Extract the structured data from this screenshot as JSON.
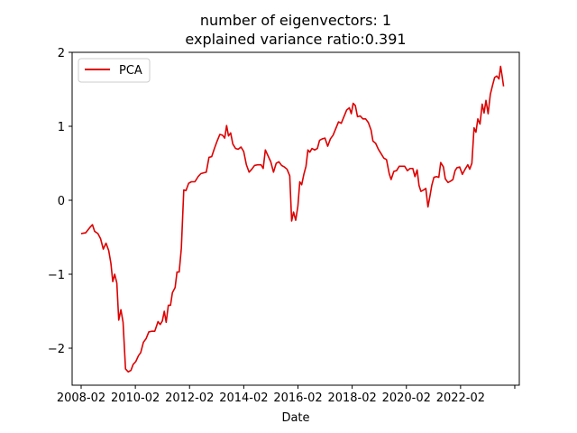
{
  "chart_data": {
    "type": "line",
    "title": [
      "number of eigenvectors: 1",
      "explained variance ratio:0.391"
    ],
    "xlabel": "Date",
    "ylabel": "",
    "xlim": [
      2007.75,
      2024.25
    ],
    "ylim": [
      -2.5,
      2.0
    ],
    "x_ticks": [
      {
        "value": 2008.083,
        "label": "2008-02"
      },
      {
        "value": 2010.083,
        "label": "2010-02"
      },
      {
        "value": 2012.083,
        "label": "2012-02"
      },
      {
        "value": 2014.083,
        "label": "2014-02"
      },
      {
        "value": 2016.083,
        "label": "2016-02"
      },
      {
        "value": 2018.083,
        "label": "2018-02"
      },
      {
        "value": 2020.083,
        "label": "2020-02"
      },
      {
        "value": 2022.083,
        "label": "2022-02"
      },
      {
        "value": 2024.083,
        "label": ""
      }
    ],
    "y_ticks": [
      {
        "value": -2,
        "label": "−2"
      },
      {
        "value": -1,
        "label": "−1"
      },
      {
        "value": 0,
        "label": "0"
      },
      {
        "value": 1,
        "label": "1"
      },
      {
        "value": 2,
        "label": "2"
      }
    ],
    "grid": false,
    "legend_position": "top-left",
    "series": [
      {
        "name": "PCA",
        "color": "#dd0000",
        "points": [
          [
            2008.08,
            -0.45
          ],
          [
            2008.25,
            -0.44
          ],
          [
            2008.4,
            -0.37
          ],
          [
            2008.5,
            -0.33
          ],
          [
            2008.58,
            -0.42
          ],
          [
            2008.7,
            -0.45
          ],
          [
            2008.8,
            -0.52
          ],
          [
            2008.9,
            -0.66
          ],
          [
            2009.0,
            -0.58
          ],
          [
            2009.1,
            -0.68
          ],
          [
            2009.18,
            -0.85
          ],
          [
            2009.25,
            -1.1
          ],
          [
            2009.32,
            -1.0
          ],
          [
            2009.4,
            -1.12
          ],
          [
            2009.47,
            -1.62
          ],
          [
            2009.55,
            -1.48
          ],
          [
            2009.63,
            -1.65
          ],
          [
            2009.72,
            -2.28
          ],
          [
            2009.82,
            -2.32
          ],
          [
            2009.92,
            -2.3
          ],
          [
            2010.0,
            -2.22
          ],
          [
            2010.1,
            -2.18
          ],
          [
            2010.2,
            -2.1
          ],
          [
            2010.28,
            -2.06
          ],
          [
            2010.38,
            -1.92
          ],
          [
            2010.48,
            -1.87
          ],
          [
            2010.58,
            -1.78
          ],
          [
            2010.7,
            -1.77
          ],
          [
            2010.8,
            -1.77
          ],
          [
            2010.92,
            -1.64
          ],
          [
            2011.0,
            -1.68
          ],
          [
            2011.08,
            -1.63
          ],
          [
            2011.15,
            -1.5
          ],
          [
            2011.22,
            -1.65
          ],
          [
            2011.3,
            -1.42
          ],
          [
            2011.38,
            -1.42
          ],
          [
            2011.45,
            -1.25
          ],
          [
            2011.55,
            -1.18
          ],
          [
            2011.62,
            -0.97
          ],
          [
            2011.7,
            -0.97
          ],
          [
            2011.78,
            -0.65
          ],
          [
            2011.87,
            0.14
          ],
          [
            2011.95,
            0.13
          ],
          [
            2012.05,
            0.23
          ],
          [
            2012.15,
            0.25
          ],
          [
            2012.28,
            0.25
          ],
          [
            2012.4,
            0.32
          ],
          [
            2012.5,
            0.36
          ],
          [
            2012.6,
            0.37
          ],
          [
            2012.7,
            0.38
          ],
          [
            2012.8,
            0.58
          ],
          [
            2012.9,
            0.59
          ],
          [
            2013.0,
            0.7
          ],
          [
            2013.1,
            0.8
          ],
          [
            2013.2,
            0.89
          ],
          [
            2013.3,
            0.88
          ],
          [
            2013.38,
            0.84
          ],
          [
            2013.45,
            1.01
          ],
          [
            2013.52,
            0.87
          ],
          [
            2013.6,
            0.91
          ],
          [
            2013.68,
            0.76
          ],
          [
            2013.78,
            0.7
          ],
          [
            2013.88,
            0.69
          ],
          [
            2013.98,
            0.72
          ],
          [
            2014.08,
            0.66
          ],
          [
            2014.18,
            0.48
          ],
          [
            2014.28,
            0.38
          ],
          [
            2014.38,
            0.42
          ],
          [
            2014.48,
            0.47
          ],
          [
            2014.6,
            0.48
          ],
          [
            2014.72,
            0.48
          ],
          [
            2014.8,
            0.43
          ],
          [
            2014.88,
            0.68
          ],
          [
            2014.98,
            0.6
          ],
          [
            2015.08,
            0.52
          ],
          [
            2015.18,
            0.38
          ],
          [
            2015.28,
            0.5
          ],
          [
            2015.38,
            0.52
          ],
          [
            2015.48,
            0.47
          ],
          [
            2015.58,
            0.45
          ],
          [
            2015.68,
            0.42
          ],
          [
            2015.78,
            0.33
          ],
          [
            2015.85,
            -0.28
          ],
          [
            2015.92,
            -0.16
          ],
          [
            2016.0,
            -0.27
          ],
          [
            2016.08,
            -0.08
          ],
          [
            2016.15,
            0.25
          ],
          [
            2016.22,
            0.21
          ],
          [
            2016.3,
            0.35
          ],
          [
            2016.38,
            0.46
          ],
          [
            2016.45,
            0.68
          ],
          [
            2016.52,
            0.65
          ],
          [
            2016.6,
            0.7
          ],
          [
            2016.7,
            0.68
          ],
          [
            2016.8,
            0.7
          ],
          [
            2016.88,
            0.81
          ],
          [
            2016.98,
            0.83
          ],
          [
            2017.08,
            0.84
          ],
          [
            2017.18,
            0.73
          ],
          [
            2017.28,
            0.83
          ],
          [
            2017.38,
            0.88
          ],
          [
            2017.48,
            0.97
          ],
          [
            2017.58,
            1.06
          ],
          [
            2017.68,
            1.04
          ],
          [
            2017.78,
            1.13
          ],
          [
            2017.88,
            1.22
          ],
          [
            2017.98,
            1.25
          ],
          [
            2018.05,
            1.17
          ],
          [
            2018.12,
            1.31
          ],
          [
            2018.2,
            1.28
          ],
          [
            2018.28,
            1.13
          ],
          [
            2018.38,
            1.14
          ],
          [
            2018.48,
            1.1
          ],
          [
            2018.58,
            1.1
          ],
          [
            2018.68,
            1.05
          ],
          [
            2018.78,
            0.95
          ],
          [
            2018.85,
            0.8
          ],
          [
            2018.95,
            0.77
          ],
          [
            2019.05,
            0.69
          ],
          [
            2019.15,
            0.63
          ],
          [
            2019.25,
            0.57
          ],
          [
            2019.35,
            0.55
          ],
          [
            2019.45,
            0.36
          ],
          [
            2019.52,
            0.28
          ],
          [
            2019.62,
            0.39
          ],
          [
            2019.72,
            0.4
          ],
          [
            2019.82,
            0.46
          ],
          [
            2019.92,
            0.46
          ],
          [
            2020.02,
            0.46
          ],
          [
            2020.12,
            0.4
          ],
          [
            2020.22,
            0.43
          ],
          [
            2020.32,
            0.43
          ],
          [
            2020.4,
            0.32
          ],
          [
            2020.48,
            0.41
          ],
          [
            2020.55,
            0.2
          ],
          [
            2020.62,
            0.12
          ],
          [
            2020.72,
            0.14
          ],
          [
            2020.8,
            0.16
          ],
          [
            2020.88,
            -0.09
          ],
          [
            2020.95,
            0.05
          ],
          [
            2021.02,
            0.2
          ],
          [
            2021.1,
            0.31
          ],
          [
            2021.2,
            0.32
          ],
          [
            2021.28,
            0.31
          ],
          [
            2021.35,
            0.51
          ],
          [
            2021.45,
            0.45
          ],
          [
            2021.52,
            0.29
          ],
          [
            2021.62,
            0.24
          ],
          [
            2021.72,
            0.26
          ],
          [
            2021.8,
            0.28
          ],
          [
            2021.88,
            0.4
          ],
          [
            2021.95,
            0.44
          ],
          [
            2022.05,
            0.45
          ],
          [
            2022.15,
            0.35
          ],
          [
            2022.25,
            0.42
          ],
          [
            2022.35,
            0.48
          ],
          [
            2022.42,
            0.42
          ],
          [
            2022.5,
            0.5
          ],
          [
            2022.58,
            0.98
          ],
          [
            2022.65,
            0.92
          ],
          [
            2022.72,
            1.1
          ],
          [
            2022.8,
            1.03
          ],
          [
            2022.88,
            1.3
          ],
          [
            2022.95,
            1.18
          ],
          [
            2023.02,
            1.35
          ],
          [
            2023.1,
            1.17
          ],
          [
            2023.18,
            1.43
          ],
          [
            2023.26,
            1.55
          ],
          [
            2023.34,
            1.66
          ],
          [
            2023.42,
            1.68
          ],
          [
            2023.5,
            1.64
          ],
          [
            2023.56,
            1.81
          ],
          [
            2023.62,
            1.67
          ],
          [
            2023.67,
            1.54
          ]
        ]
      }
    ]
  }
}
